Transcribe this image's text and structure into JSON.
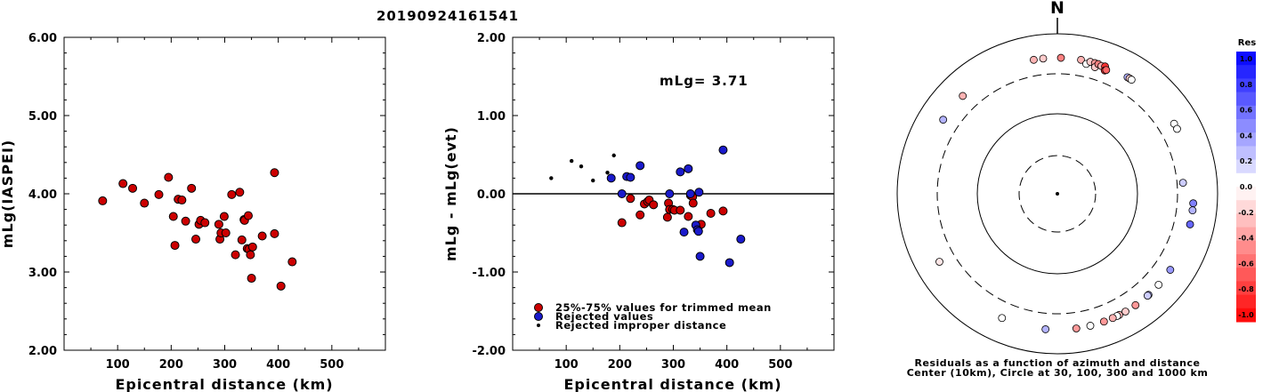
{
  "title": "20190924161541",
  "colors": {
    "accepted": "#cc0000",
    "rejected": "#1a1acc",
    "improper": "#000000"
  },
  "chart_data": [
    {
      "type": "scatter",
      "ylabel": "mLg(IASPEI)",
      "xlabel": "Epicentral distance (km)",
      "xlim": [
        0,
        600
      ],
      "ylim": [
        2.0,
        6.0
      ],
      "xticks": [
        "100",
        "200",
        "300",
        "400",
        "500"
      ],
      "yticks": [
        "2.00",
        "3.00",
        "4.00",
        "5.00",
        "6.00"
      ],
      "series": [
        {
          "points": [
            [
              72,
              3.91
            ],
            [
              110,
              4.13
            ],
            [
              128,
              4.07
            ],
            [
              150,
              3.88
            ],
            [
              177,
              3.99
            ],
            [
              195,
              4.21
            ],
            [
              204,
              3.71
            ],
            [
              207,
              3.34
            ],
            [
              213,
              3.93
            ],
            [
              220,
              3.92
            ],
            [
              227,
              3.65
            ],
            [
              238,
              4.07
            ],
            [
              246,
              3.42
            ],
            [
              252,
              3.61
            ],
            [
              255,
              3.66
            ],
            [
              263,
              3.63
            ],
            [
              289,
              3.61
            ],
            [
              291,
              3.42
            ],
            [
              293,
              3.5
            ],
            [
              299,
              3.71
            ],
            [
              302,
              3.5
            ],
            [
              313,
              3.99
            ],
            [
              320,
              3.22
            ],
            [
              328,
              4.02
            ],
            [
              332,
              3.41
            ],
            [
              336,
              3.67
            ],
            [
              337,
              3.66
            ],
            [
              342,
              3.3
            ],
            [
              344,
              3.72
            ],
            [
              345,
              3.29
            ],
            [
              348,
              3.22
            ],
            [
              350,
              2.92
            ],
            [
              352,
              3.32
            ],
            [
              370,
              3.46
            ],
            [
              393,
              4.27
            ],
            [
              393,
              3.49
            ],
            [
              405,
              2.82
            ],
            [
              426,
              3.13
            ]
          ]
        }
      ]
    },
    {
      "type": "scatter",
      "ylabel": "mLg - mLg(evt)",
      "xlabel": "Epicentral distance (km)",
      "xlim": [
        0,
        600
      ],
      "ylim": [
        -2.0,
        2.0
      ],
      "xticks": [
        "100",
        "200",
        "300",
        "400",
        "500"
      ],
      "yticks": [
        "-2.00",
        "-1.00",
        "0.00",
        "1.00",
        "2.00"
      ],
      "annotation": "mLg= 3.71",
      "legend": [
        "25%-75% values for trimmed mean",
        "Rejected values",
        "Rejected improper distance"
      ],
      "series": [
        {
          "role": "accepted",
          "points": [
            [
              204,
              -0.37
            ],
            [
              220,
              -0.06
            ],
            [
              238,
              -0.27
            ],
            [
              246,
              -0.13
            ],
            [
              252,
              -0.1
            ],
            [
              255,
              -0.08
            ],
            [
              263,
              -0.14
            ],
            [
              289,
              -0.3
            ],
            [
              291,
              -0.12
            ],
            [
              293,
              -0.2
            ],
            [
              299,
              -0.2
            ],
            [
              302,
              -0.21
            ],
            [
              313,
              -0.21
            ],
            [
              328,
              -0.29
            ],
            [
              332,
              -0.02
            ],
            [
              336,
              -0.04
            ],
            [
              337,
              -0.12
            ],
            [
              348,
              -0.41
            ],
            [
              352,
              -0.39
            ],
            [
              370,
              -0.25
            ],
            [
              393,
              -0.22
            ]
          ]
        },
        {
          "role": "rejected",
          "points": [
            [
              184,
              0.2
            ],
            [
              204,
              0.0
            ],
            [
              213,
              0.22
            ],
            [
              220,
              0.21
            ],
            [
              238,
              0.36
            ],
            [
              293,
              0.0
            ],
            [
              313,
              0.28
            ],
            [
              320,
              -0.49
            ],
            [
              328,
              0.32
            ],
            [
              332,
              0.0
            ],
            [
              342,
              -0.4
            ],
            [
              345,
              -0.46
            ],
            [
              347,
              -0.48
            ],
            [
              348,
              0.02
            ],
            [
              350,
              -0.8
            ],
            [
              393,
              0.56
            ],
            [
              405,
              -0.88
            ],
            [
              426,
              -0.58
            ]
          ]
        },
        {
          "role": "improper",
          "points": [
            [
              72,
              0.2
            ],
            [
              110,
              0.42
            ],
            [
              128,
              0.35
            ],
            [
              150,
              0.17
            ],
            [
              177,
              0.27
            ],
            [
              189,
              0.49
            ]
          ]
        }
      ]
    },
    {
      "type": "polar-scatter",
      "north_label": "N",
      "caption": [
        "Residuals as a function of azimuth and distance",
        "Center (10km), Circle at 30, 100, 300 and 1000 km"
      ],
      "colorbar": {
        "title": "Res",
        "labels": [
          "1.0",
          "0.8",
          "0.6",
          "0.4",
          "0.2",
          "0.0",
          "-0.2",
          "-0.4",
          "-0.6",
          "-0.8",
          "-1.0"
        ]
      },
      "points": [
        {
          "az": -6.0,
          "dist": 1000,
          "res": -0.2
        },
        {
          "az": 1.5,
          "dist": 1000,
          "res": -0.5
        },
        {
          "az": 10.0,
          "dist": 1000,
          "res": -0.3
        },
        {
          "az": 12.5,
          "dist": 900,
          "res": 0.0
        },
        {
          "az": 14.0,
          "dist": 1000,
          "res": -0.2
        },
        {
          "az": 16.0,
          "dist": 1000,
          "res": -0.4
        },
        {
          "az": 16.5,
          "dist": 870,
          "res": -0.2
        },
        {
          "az": 17.5,
          "dist": 1000,
          "res": -0.5
        },
        {
          "az": 19.0,
          "dist": 970,
          "res": -0.3
        },
        {
          "az": 20.5,
          "dist": 1000,
          "res": -0.8
        },
        {
          "az": 21.0,
          "dist": 870,
          "res": -0.8
        },
        {
          "az": 21.5,
          "dist": 900,
          "res": -0.6
        },
        {
          "az": 31.0,
          "dist": 1000,
          "res": 0.3
        },
        {
          "az": 32.0,
          "dist": 1000,
          "res": -0.2
        },
        {
          "az": 33.0,
          "dist": 1000,
          "res": 0.0
        },
        {
          "az": 59.0,
          "dist": 1000,
          "res": 0.0
        },
        {
          "az": 61.5,
          "dist": 1000,
          "res": 0.0
        },
        {
          "az": 85.0,
          "dist": 700,
          "res": 0.2
        },
        {
          "az": 94.0,
          "dist": 1000,
          "res": 0.5
        },
        {
          "az": 97.0,
          "dist": 1000,
          "res": 0.3
        },
        {
          "az": 103.0,
          "dist": 1000,
          "res": 0.6
        },
        {
          "az": 124.0,
          "dist": 1000,
          "res": 0.4
        },
        {
          "az": 132.0,
          "dist": 1000,
          "res": 0.0
        },
        {
          "az": 138.0,
          "dist": 1000,
          "res": 0.3
        },
        {
          "az": 138.5,
          "dist": 1000,
          "res": 0.2
        },
        {
          "az": 145.0,
          "dist": 1000,
          "res": -0.4
        },
        {
          "az": 150.0,
          "dist": 1000,
          "res": -0.2
        },
        {
          "az": 153.0,
          "dist": 1000,
          "res": -0.3
        },
        {
          "az": 154.0,
          "dist": 1000,
          "res": 0.0
        },
        {
          "az": 156.0,
          "dist": 1000,
          "res": -0.3
        },
        {
          "az": 160.0,
          "dist": 1000,
          "res": -0.4
        },
        {
          "az": 166.0,
          "dist": 1000,
          "res": 0.0
        },
        {
          "az": 172.0,
          "dist": 1000,
          "res": -0.4
        },
        {
          "az": 185.0,
          "dist": 1000,
          "res": 0.3
        },
        {
          "az": 204.0,
          "dist": 1000,
          "res": 0.0
        },
        {
          "az": 240.0,
          "dist": 1000,
          "res": -0.1
        },
        {
          "az": 303.0,
          "dist": 1000,
          "res": 0.3
        },
        {
          "az": 316.0,
          "dist": 1000,
          "res": -0.3
        },
        {
          "az": 350.0,
          "dist": 1000,
          "res": -0.3
        }
      ]
    }
  ]
}
